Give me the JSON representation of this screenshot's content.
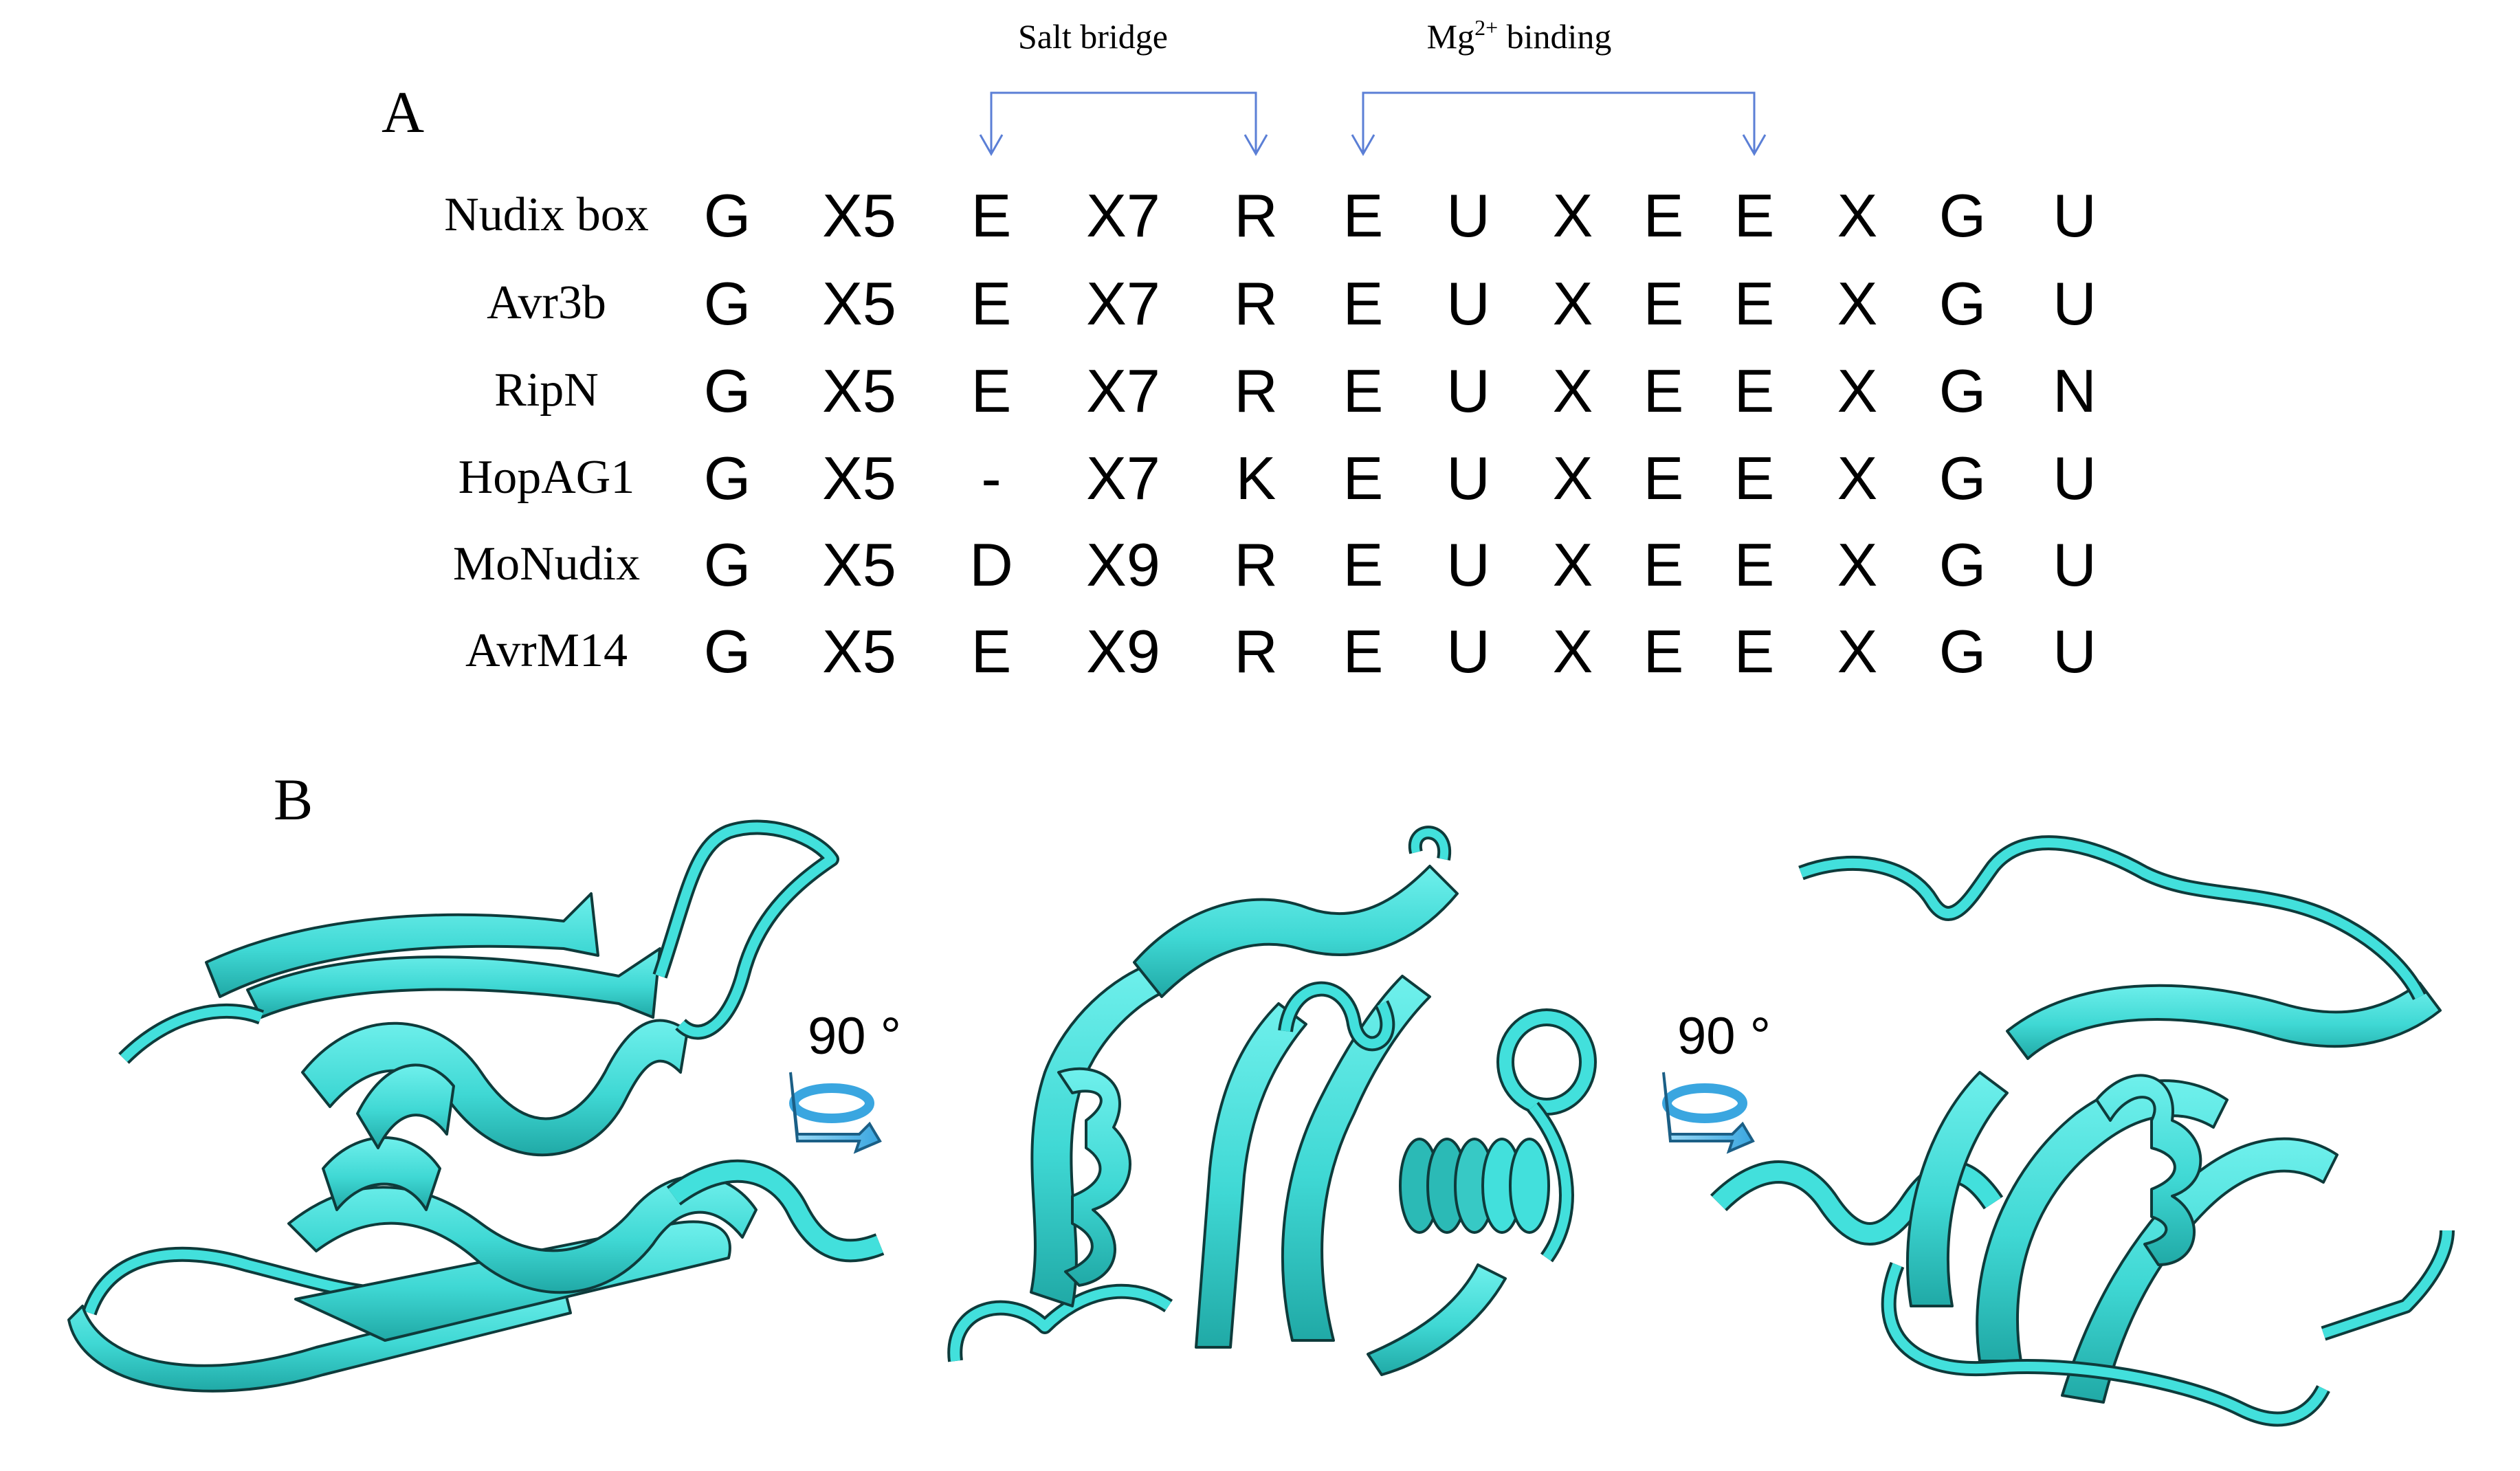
{
  "panel_a": {
    "label": "A",
    "brackets": [
      {
        "label": "Salt bridge",
        "sup": ""
      },
      {
        "label": "Mg",
        "sup": "2+",
        "suffix": " binding"
      }
    ],
    "rows": [
      {
        "name": "Nudix box",
        "cells": [
          "G",
          "X5",
          "E",
          "X7",
          "R",
          "E",
          "U",
          "X",
          "E",
          "E",
          "X",
          "G",
          "U"
        ]
      },
      {
        "name": "Avr3b",
        "cells": [
          "G",
          "X5",
          "E",
          "X7",
          "R",
          "E",
          "U",
          "X",
          "E",
          "E",
          "X",
          "G",
          "U"
        ]
      },
      {
        "name": "RipN",
        "cells": [
          "G",
          "X5",
          "E",
          "X7",
          "R",
          "E",
          "U",
          "X",
          "E",
          "E",
          "X",
          "G",
          "N"
        ]
      },
      {
        "name": "HopAG1",
        "cells": [
          "G",
          "X5",
          "-",
          "X7",
          "K",
          "E",
          "U",
          "X",
          "E",
          "E",
          "X",
          "G",
          "U"
        ]
      },
      {
        "name": "MoNudix",
        "cells": [
          "G",
          "X5",
          "D",
          "X9",
          "R",
          "E",
          "U",
          "X",
          "E",
          "E",
          "X",
          "G",
          "U"
        ]
      },
      {
        "name": "AvrM14",
        "cells": [
          "G",
          "X5",
          "E",
          "X9",
          "R",
          "E",
          "U",
          "X",
          "E",
          "E",
          "X",
          "G",
          "U"
        ]
      }
    ]
  },
  "panel_b": {
    "label": "B",
    "rotation_labels": [
      "90 °",
      "90 °"
    ],
    "colors": {
      "ribbon": "#42e0dc",
      "ribbon_dark": "#1fa8a6",
      "outline": "#0e3b3b",
      "rotate_arrow": "#49b6e6"
    }
  },
  "colors": {
    "bracket_line": "#5b7fd6"
  }
}
